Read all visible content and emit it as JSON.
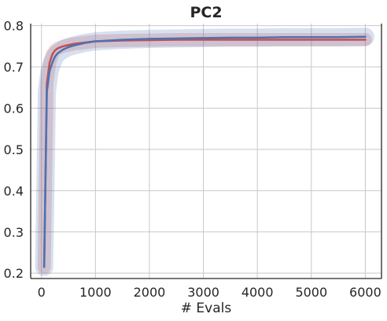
{
  "chart_data": {
    "type": "line",
    "title": "PC2",
    "xlabel": "# Evals",
    "ylabel": "",
    "xlim": [
      -200,
      6300
    ],
    "ylim": [
      0.187,
      0.805
    ],
    "xticks": [
      0,
      1000,
      2000,
      3000,
      4000,
      5000,
      6000
    ],
    "xtick_labels": [
      "0",
      "1000",
      "2000",
      "3000",
      "4000",
      "5000",
      "6000"
    ],
    "yticks": [
      0.2,
      0.3,
      0.4,
      0.5,
      0.6,
      0.7,
      0.8
    ],
    "ytick_labels": [
      "0.2",
      "0.3",
      "0.4",
      "0.5",
      "0.6",
      "0.7",
      "0.8"
    ],
    "grid": true,
    "legend": "none",
    "series": [
      {
        "color": "#c44e52",
        "x": [
          50,
          100,
          150,
          200,
          250,
          300,
          400,
          500,
          600,
          800,
          1000,
          1500,
          2000,
          2500,
          3000,
          3500,
          4000,
          4500,
          5000,
          5500,
          6000
        ],
        "y": [
          0.215,
          0.66,
          0.71,
          0.73,
          0.74,
          0.745,
          0.75,
          0.753,
          0.756,
          0.759,
          0.762,
          0.764,
          0.765,
          0.766,
          0.766,
          0.766,
          0.766,
          0.766,
          0.766,
          0.766,
          0.766
        ],
        "band": [
          0.008,
          0.016,
          0.016,
          0.014,
          0.013,
          0.012,
          0.011,
          0.01,
          0.01,
          0.009,
          0.009,
          0.008,
          0.008,
          0.008,
          0.008,
          0.008,
          0.008,
          0.008,
          0.008,
          0.008,
          0.008
        ]
      },
      {
        "color": "#4c72b0",
        "x": [
          50,
          100,
          150,
          200,
          250,
          300,
          400,
          500,
          600,
          800,
          1000,
          1500,
          2000,
          2500,
          3000,
          3500,
          4000,
          4500,
          5000,
          5500,
          6000
        ],
        "y": [
          0.215,
          0.64,
          0.69,
          0.71,
          0.725,
          0.733,
          0.742,
          0.748,
          0.752,
          0.758,
          0.762,
          0.766,
          0.768,
          0.769,
          0.77,
          0.771,
          0.771,
          0.772,
          0.772,
          0.772,
          0.773
        ],
        "band": [
          0.01,
          0.022,
          0.02,
          0.018,
          0.016,
          0.015,
          0.014,
          0.013,
          0.012,
          0.012,
          0.011,
          0.011,
          0.01,
          0.01,
          0.01,
          0.01,
          0.01,
          0.01,
          0.01,
          0.01,
          0.01
        ]
      }
    ]
  }
}
